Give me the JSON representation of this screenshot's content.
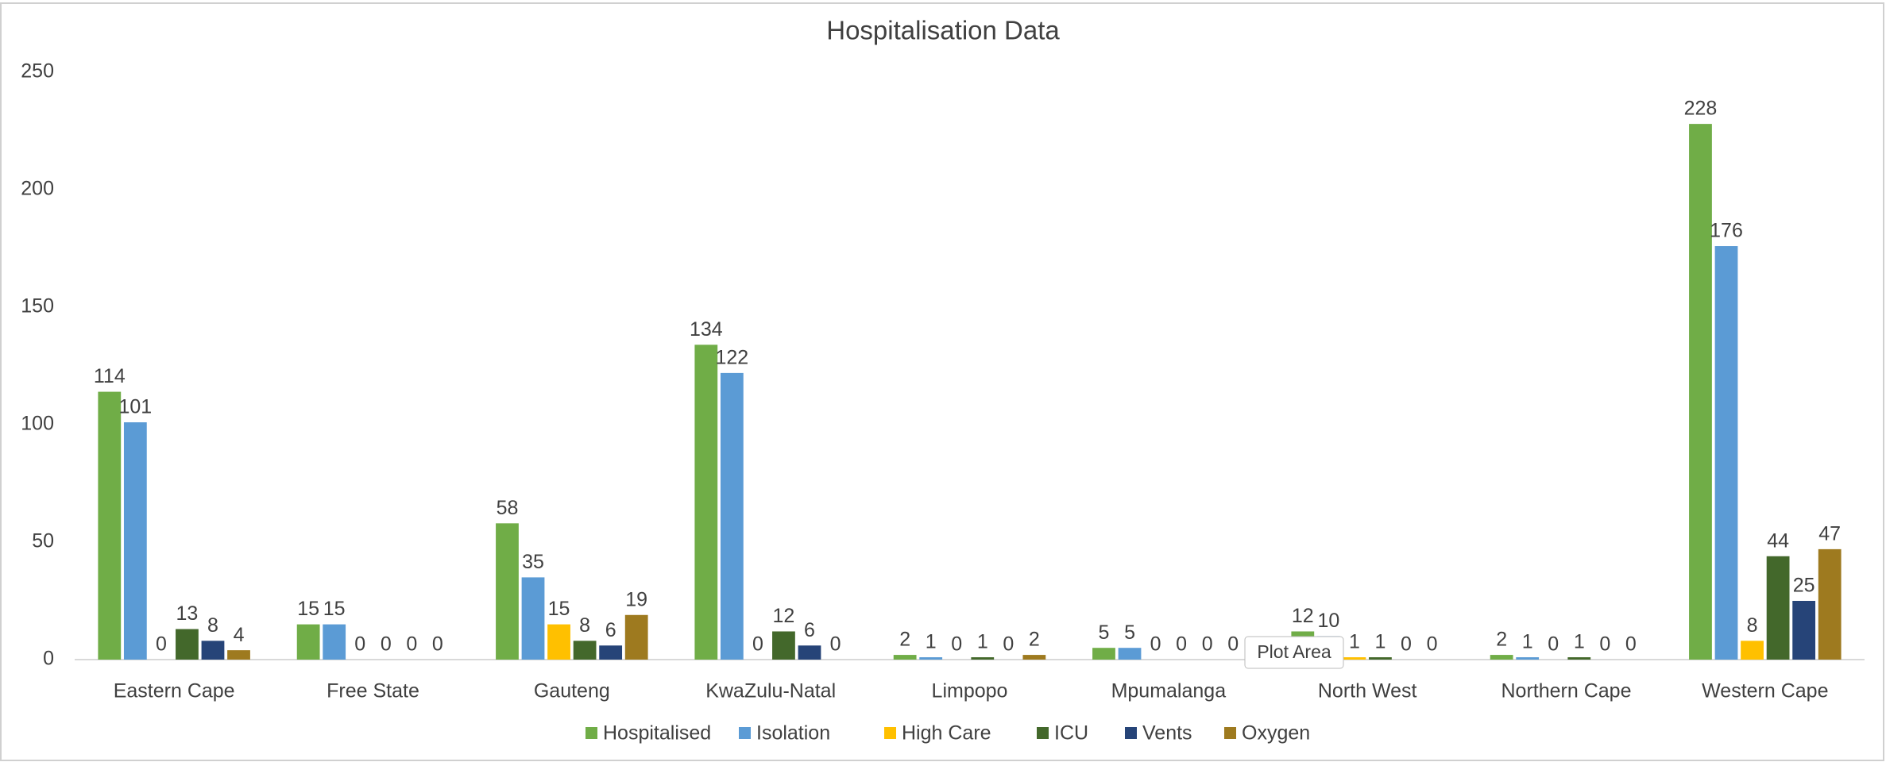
{
  "chart_data": {
    "type": "bar",
    "title": "Hospitalisation Data",
    "categories": [
      "Eastern Cape",
      "Free State",
      "Gauteng",
      "KwaZulu-Natal",
      "Limpopo",
      "Mpumalanga",
      "North West",
      "Northern Cape",
      "Western Cape"
    ],
    "series": [
      {
        "name": "Hospitalised",
        "color": "#70ad47",
        "values": [
          114,
          15,
          58,
          134,
          2,
          5,
          12,
          2,
          228
        ]
      },
      {
        "name": "Isolation",
        "color": "#5b9bd5",
        "values": [
          101,
          15,
          35,
          122,
          1,
          5,
          10,
          1,
          176
        ]
      },
      {
        "name": "High Care",
        "color": "#ffc000",
        "values": [
          0,
          0,
          15,
          0,
          0,
          0,
          1,
          0,
          8
        ]
      },
      {
        "name": "ICU",
        "color": "#43682b",
        "values": [
          13,
          0,
          8,
          12,
          1,
          0,
          1,
          1,
          44
        ]
      },
      {
        "name": "Vents",
        "color": "#264478",
        "values": [
          8,
          0,
          6,
          6,
          0,
          0,
          0,
          0,
          25
        ]
      },
      {
        "name": "Oxygen",
        "color": "#9e7a1f",
        "values": [
          4,
          0,
          19,
          0,
          2,
          0,
          0,
          0,
          47
        ]
      }
    ],
    "ylim": [
      0,
      250
    ],
    "yticks": [
      0,
      50,
      100,
      150,
      200,
      250
    ],
    "grid": false,
    "legend": "bottom",
    "tooltip": "Plot Area"
  }
}
